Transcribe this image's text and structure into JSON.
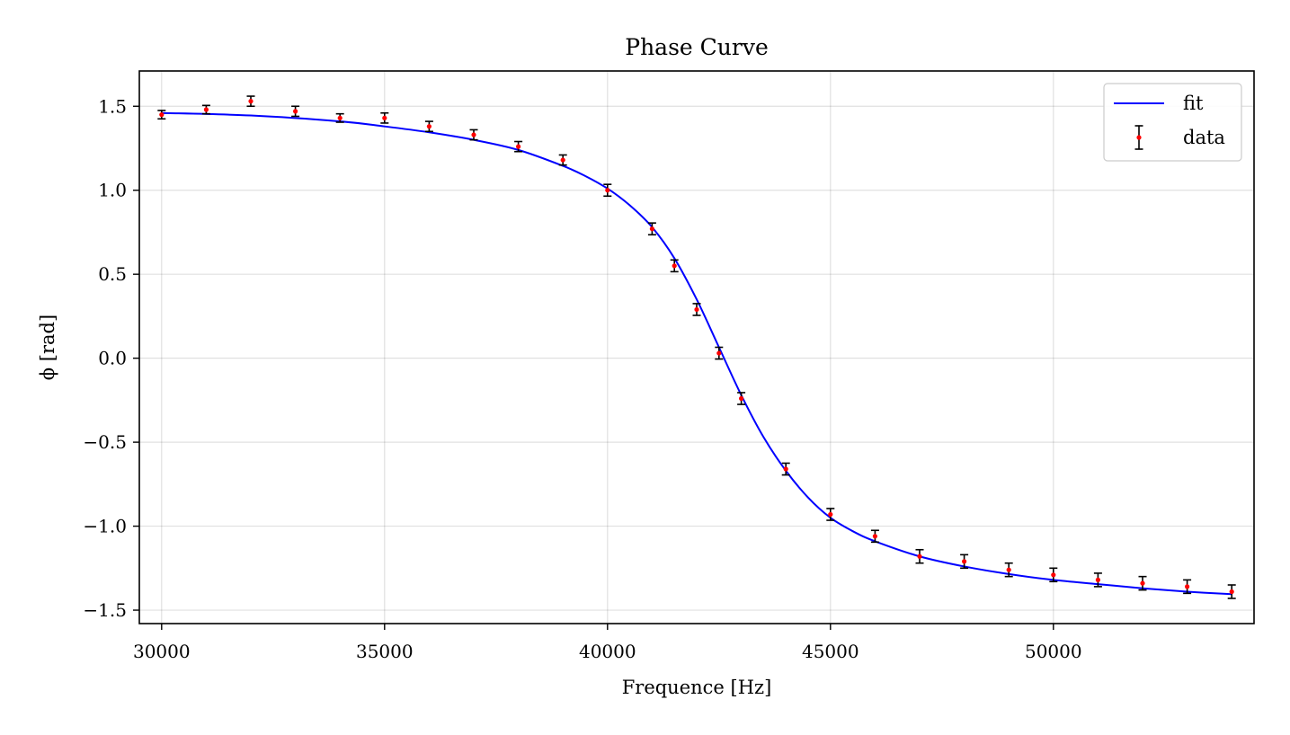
{
  "chart_data": {
    "type": "scatter",
    "title": "Phase Curve",
    "xlabel": "Frequence [Hz]",
    "ylabel": "ϕ [rad]",
    "xlim": [
      29500,
      54500
    ],
    "ylim": [
      -1.58,
      1.71
    ],
    "xticks": [
      30000,
      35000,
      40000,
      45000,
      50000
    ],
    "xtick_labels": [
      "30000",
      "35000",
      "40000",
      "45000",
      "50000"
    ],
    "yticks": [
      1.5,
      1.0,
      0.5,
      0.0,
      -0.5,
      -1.0,
      -1.5
    ],
    "ytick_labels": [
      "1.5",
      "1.0",
      "0.5",
      "0.0",
      "−0.5",
      "−1.0",
      "−1.5"
    ],
    "grid": true,
    "legend_position": "top-right",
    "legend": [
      {
        "label": "fit",
        "kind": "line",
        "color": "#0000ff"
      },
      {
        "label": "data",
        "kind": "errorbar",
        "color": "#ff0000"
      }
    ],
    "series": [
      {
        "name": "data",
        "kind": "errorbar",
        "color": "#ff0000",
        "errbar_color": "#000000",
        "points": [
          {
            "x": 30000,
            "y": 1.45,
            "err": 0.025
          },
          {
            "x": 31000,
            "y": 1.48,
            "err": 0.025
          },
          {
            "x": 32000,
            "y": 1.53,
            "err": 0.03
          },
          {
            "x": 33000,
            "y": 1.47,
            "err": 0.03
          },
          {
            "x": 34000,
            "y": 1.43,
            "err": 0.025
          },
          {
            "x": 35000,
            "y": 1.43,
            "err": 0.03
          },
          {
            "x": 36000,
            "y": 1.38,
            "err": 0.03
          },
          {
            "x": 37000,
            "y": 1.33,
            "err": 0.03
          },
          {
            "x": 38000,
            "y": 1.26,
            "err": 0.03
          },
          {
            "x": 39000,
            "y": 1.18,
            "err": 0.03
          },
          {
            "x": 40000,
            "y": 1.0,
            "err": 0.035
          },
          {
            "x": 41000,
            "y": 0.77,
            "err": 0.035
          },
          {
            "x": 41500,
            "y": 0.55,
            "err": 0.035
          },
          {
            "x": 42000,
            "y": 0.29,
            "err": 0.035
          },
          {
            "x": 42500,
            "y": 0.03,
            "err": 0.035
          },
          {
            "x": 43000,
            "y": -0.24,
            "err": 0.035
          },
          {
            "x": 44000,
            "y": -0.66,
            "err": 0.035
          },
          {
            "x": 45000,
            "y": -0.93,
            "err": 0.035
          },
          {
            "x": 46000,
            "y": -1.06,
            "err": 0.035
          },
          {
            "x": 47000,
            "y": -1.18,
            "err": 0.04
          },
          {
            "x": 48000,
            "y": -1.21,
            "err": 0.04
          },
          {
            "x": 49000,
            "y": -1.26,
            "err": 0.04
          },
          {
            "x": 50000,
            "y": -1.29,
            "err": 0.04
          },
          {
            "x": 51000,
            "y": -1.32,
            "err": 0.04
          },
          {
            "x": 52000,
            "y": -1.34,
            "err": 0.04
          },
          {
            "x": 53000,
            "y": -1.36,
            "err": 0.04
          },
          {
            "x": 54000,
            "y": -1.39,
            "err": 0.04
          }
        ]
      },
      {
        "name": "fit",
        "kind": "line",
        "color": "#0000ff",
        "points": [
          {
            "x": 30000,
            "y": 1.46
          },
          {
            "x": 32000,
            "y": 1.445
          },
          {
            "x": 34000,
            "y": 1.41
          },
          {
            "x": 35000,
            "y": 1.38
          },
          {
            "x": 36000,
            "y": 1.345
          },
          {
            "x": 37000,
            "y": 1.3
          },
          {
            "x": 38000,
            "y": 1.24
          },
          {
            "x": 39000,
            "y": 1.145
          },
          {
            "x": 39500,
            "y": 1.085
          },
          {
            "x": 40000,
            "y": 1.01
          },
          {
            "x": 40500,
            "y": 0.91
          },
          {
            "x": 41000,
            "y": 0.78
          },
          {
            "x": 41500,
            "y": 0.595
          },
          {
            "x": 42000,
            "y": 0.35
          },
          {
            "x": 42500,
            "y": 0.065
          },
          {
            "x": 43000,
            "y": -0.22
          },
          {
            "x": 43500,
            "y": -0.47
          },
          {
            "x": 44000,
            "y": -0.67
          },
          {
            "x": 44500,
            "y": -0.83
          },
          {
            "x": 45000,
            "y": -0.95
          },
          {
            "x": 45500,
            "y": -1.03
          },
          {
            "x": 46000,
            "y": -1.09
          },
          {
            "x": 47000,
            "y": -1.18
          },
          {
            "x": 48000,
            "y": -1.24
          },
          {
            "x": 49000,
            "y": -1.285
          },
          {
            "x": 50000,
            "y": -1.32
          },
          {
            "x": 51000,
            "y": -1.345
          },
          {
            "x": 52000,
            "y": -1.37
          },
          {
            "x": 53000,
            "y": -1.39
          },
          {
            "x": 54000,
            "y": -1.405
          }
        ]
      }
    ]
  }
}
